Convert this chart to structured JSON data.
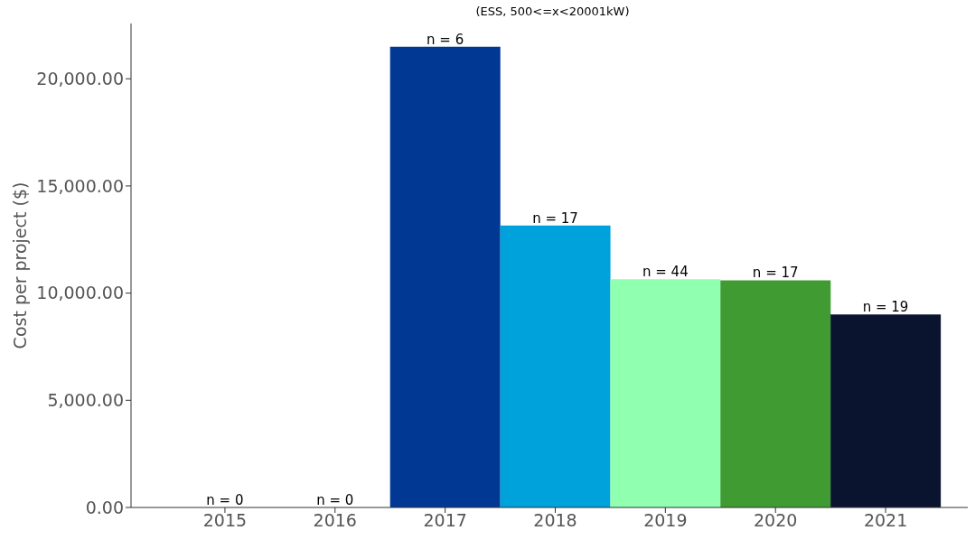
{
  "chart_data": {
    "type": "bar",
    "title": "(ESS, 500<=x<20001kW)",
    "ylabel": "Cost per project ($)",
    "categories": [
      "2015",
      "2016",
      "2017",
      "2018",
      "2019",
      "2020",
      "2021"
    ],
    "values": [
      0,
      0,
      21500,
      13150,
      10650,
      10600,
      9000
    ],
    "colors": [
      "#003893",
      "#003893",
      "#003893",
      "#00a2db",
      "#90ffb0",
      "#409b33",
      "#0a142f"
    ],
    "annotations": [
      {
        "text": "n = 0",
        "x": "2015",
        "y": 0
      },
      {
        "text": "n = 0",
        "x": "2016",
        "y": 0
      },
      {
        "text": "n = 6",
        "x": "2017",
        "y": 21500
      },
      {
        "text": "n = 17",
        "x": "2018",
        "y": 13150
      },
      {
        "text": "n = 44",
        "x": "2019",
        "y": 10650
      },
      {
        "text": "n = 17",
        "x": "2020",
        "y": 10600
      },
      {
        "text": "n = 19",
        "x": "2021",
        "y": 9000
      }
    ],
    "ylim": [
      0,
      22580
    ],
    "yticks": [
      {
        "value": 0,
        "label": "0.00"
      },
      {
        "value": 5000,
        "label": "5,000.00"
      },
      {
        "value": 10000,
        "label": "10,000.00"
      },
      {
        "value": 15000,
        "label": "15,000.00"
      },
      {
        "value": 20000,
        "label": "20,000.00"
      }
    ],
    "grid": false,
    "legend": false
  }
}
